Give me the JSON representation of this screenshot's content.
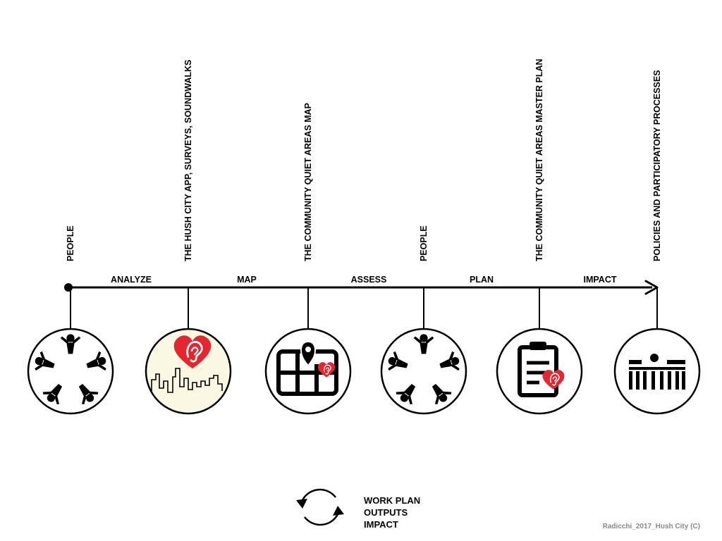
{
  "timeline": {
    "stages": [
      {
        "label": "PEOPLE",
        "icon": "people-circle-icon"
      },
      {
        "label": "THE HUSH CITY APP, SURVEYS, SOUNDWALKS",
        "icon": "hush-city-skyline-icon"
      },
      {
        "label": "THE COMMUNITY QUIET AREAS MAP",
        "icon": "map-pin-icon"
      },
      {
        "label": "PEOPLE",
        "icon": "people-circle-icon"
      },
      {
        "label": "THE COMMUNITY QUIET AREAS MASTER PLAN",
        "icon": "clipboard-plan-icon"
      },
      {
        "label": "POLICIES AND PARTICIPATORY PROCESSES",
        "icon": "government-building-icon"
      }
    ],
    "phases": [
      "ANALYZE",
      "MAP",
      "ASSESS",
      "PLAN",
      "IMPACT"
    ]
  },
  "legend": {
    "icon": "cycle-arrows-icon",
    "lines": [
      "WORK PLAN",
      "OUTPUTS",
      "IMPACT"
    ]
  },
  "credit": "Radicchi_2017_Hush City (C)",
  "colors": {
    "heart": "#e3262f",
    "app_background": "#fbf8e3",
    "line": "#000000"
  }
}
